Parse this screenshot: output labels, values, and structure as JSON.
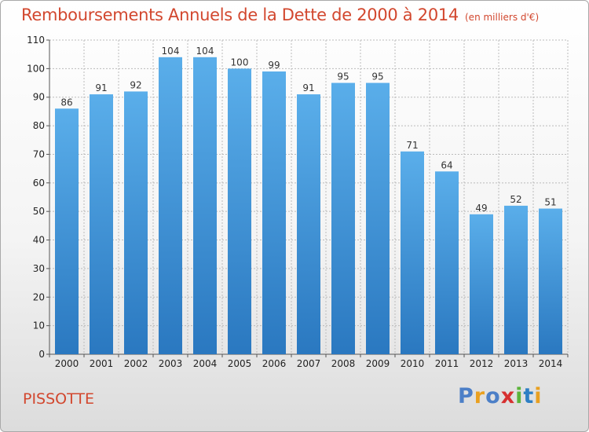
{
  "title": "Remboursements Annuels de la Dette de 2000 à 2014",
  "subtitle": "(en milliers d'€)",
  "commune": "PISSOTTE",
  "brand": {
    "letters": [
      "P",
      "r",
      "o",
      "x",
      "i",
      "t",
      "i"
    ],
    "colors": [
      "#4c7fc7",
      "#e9a020",
      "#4c7fc7",
      "#d63030",
      "#5bb43a",
      "#2d7fc4",
      "#e9a020"
    ]
  },
  "colors": {
    "bar_light": "#5aaeea",
    "bar_dark": "#2a78c0",
    "title": "#d2472e",
    "grid": "#bbbbbb"
  },
  "chart_data": {
    "type": "bar",
    "title": "Remboursements Annuels de la Dette de 2000 à 2014",
    "subtitle": "(en milliers d'€)",
    "xlabel": "",
    "ylabel": "",
    "ylim": [
      0,
      110
    ],
    "yticks": [
      0,
      10,
      20,
      30,
      40,
      50,
      60,
      70,
      80,
      90,
      100,
      110
    ],
    "grid": true,
    "categories": [
      "2000",
      "2001",
      "2002",
      "2003",
      "2004",
      "2005",
      "2006",
      "2007",
      "2008",
      "2009",
      "2010",
      "2011",
      "2012",
      "2013",
      "2014"
    ],
    "values": [
      86,
      91,
      92,
      104,
      104,
      100,
      99,
      91,
      95,
      95,
      71,
      64,
      49,
      52,
      51
    ]
  }
}
